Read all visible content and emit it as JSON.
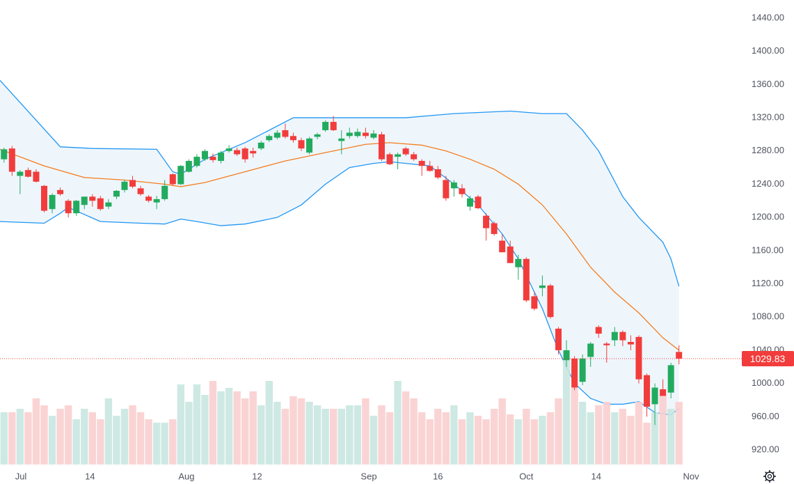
{
  "chart_data": {
    "type": "candlestick",
    "open": [
      1270,
      1283,
      1250,
      1257,
      1255,
      1238,
      1210,
      1233,
      1220,
      1205,
      1215,
      1225,
      1223,
      1213,
      1225,
      1233,
      1245,
      1235,
      1225,
      1218,
      1222,
      1252,
      1240,
      1255,
      1262,
      1270,
      1273,
      1268,
      1280,
      1281,
      1283,
      1280,
      1283,
      1293,
      1296,
      1305,
      1298,
      1293,
      1278,
      1297,
      1305,
      1315,
      1292,
      1298,
      1298,
      1302,
      1296,
      1300,
      1276,
      1273,
      1283,
      1276,
      1268,
      1262,
      1258,
      1245,
      1235,
      1235,
      1213,
      1225,
      1202,
      1193,
      1172,
      1165,
      1140,
      1150,
      1105,
      1115,
      1118,
      1066,
      1028,
      1030,
      1002,
      1032,
      1068,
      1048,
      1052,
      1062,
      1050,
      1056,
      1010,
      975,
      993,
      989,
      1038
    ],
    "high": [
      1284,
      1286,
      1257,
      1260,
      1258,
      1239,
      1229,
      1236,
      1222,
      1221,
      1225,
      1228,
      1226,
      1222,
      1233,
      1245,
      1250,
      1238,
      1227,
      1226,
      1245,
      1253,
      1263,
      1270,
      1276,
      1282,
      1277,
      1280,
      1287,
      1284,
      1285,
      1284,
      1292,
      1300,
      1305,
      1313,
      1302,
      1296,
      1297,
      1302,
      1317,
      1322,
      1305,
      1308,
      1307,
      1308,
      1305,
      1303,
      1278,
      1278,
      1285,
      1279,
      1270,
      1268,
      1262,
      1250,
      1245,
      1240,
      1226,
      1227,
      1205,
      1195,
      1180,
      1172,
      1155,
      1152,
      1110,
      1130,
      1120,
      1068,
      1052,
      1033,
      1035,
      1050,
      1070,
      1050,
      1068,
      1064,
      1058,
      1058,
      1012,
      1000,
      1005,
      1025,
      1046
    ],
    "low": [
      1266,
      1250,
      1228,
      1248,
      1242,
      1206,
      1205,
      1226,
      1200,
      1202,
      1210,
      1213,
      1208,
      1210,
      1222,
      1230,
      1235,
      1226,
      1218,
      1210,
      1220,
      1238,
      1239,
      1254,
      1260,
      1268,
      1266,
      1265,
      1278,
      1274,
      1266,
      1272,
      1281,
      1291,
      1294,
      1295,
      1290,
      1280,
      1276,
      1294,
      1303,
      1304,
      1276,
      1295,
      1296,
      1295,
      1294,
      1268,
      1263,
      1258,
      1274,
      1268,
      1250,
      1255,
      1246,
      1220,
      1225,
      1224,
      1208,
      1210,
      1172,
      1178,
      1158,
      1145,
      1125,
      1098,
      1088,
      1105,
      1078,
      1035,
      1020,
      992,
      998,
      1020,
      1055,
      1025,
      1045,
      1045,
      1040,
      1000,
      960,
      950,
      985,
      982,
      1023
    ],
    "close": [
      1282,
      1255,
      1255,
      1249,
      1243,
      1208,
      1227,
      1228,
      1205,
      1220,
      1225,
      1220,
      1210,
      1218,
      1232,
      1243,
      1237,
      1228,
      1220,
      1222,
      1238,
      1240,
      1262,
      1268,
      1273,
      1280,
      1269,
      1278,
      1283,
      1276,
      1270,
      1277,
      1290,
      1298,
      1302,
      1297,
      1293,
      1283,
      1295,
      1300,
      1315,
      1305,
      1295,
      1302,
      1303,
      1298,
      1301,
      1270,
      1264,
      1276,
      1276,
      1270,
      1262,
      1256,
      1248,
      1223,
      1242,
      1228,
      1223,
      1211,
      1187,
      1180,
      1158,
      1145,
      1150,
      1100,
      1090,
      1118,
      1080,
      1040,
      1040,
      995,
      1030,
      1048,
      1060,
      1046,
      1062,
      1052,
      1047,
      1005,
      972,
      995,
      985,
      1022,
      1029.83
    ],
    "volume": [
      75,
      75,
      80,
      75,
      95,
      85,
      70,
      80,
      85,
      65,
      80,
      75,
      65,
      95,
      70,
      80,
      85,
      75,
      65,
      60,
      60,
      65,
      115,
      90,
      115,
      100,
      120,
      105,
      110,
      105,
      95,
      105,
      85,
      120,
      90,
      80,
      98,
      95,
      90,
      85,
      80,
      80,
      80,
      85,
      85,
      95,
      70,
      85,
      75,
      120,
      105,
      95,
      75,
      65,
      80,
      75,
      85,
      65,
      75,
      70,
      65,
      80,
      95,
      72,
      65,
      80,
      65,
      70,
      75,
      95,
      150,
      110,
      90,
      75,
      85,
      90,
      75,
      80,
      70,
      90,
      60,
      75,
      100,
      80,
      90
    ],
    "up_color": "#22ab5e",
    "down_color": "#f23c3c",
    "series": [
      {
        "color": "#2196f3",
        "x": [
          -0.5,
          7,
          11,
          19,
          21,
          22,
          25,
          30,
          36,
          40,
          50,
          56,
          63,
          67,
          70,
          72,
          74,
          77,
          79,
          82,
          83,
          84
        ],
        "values": [
          1365,
          1285,
          1283,
          1282,
          1255,
          1252,
          1270,
          1290,
          1320,
          1320,
          1320,
          1325,
          1328,
          1325,
          1325,
          1305,
          1280,
          1225,
          1200,
          1170,
          1150,
          1117
        ]
      },
      {
        "color": "#f57c1f",
        "x": [
          -0.5,
          5,
          10,
          15,
          20,
          22,
          25,
          30,
          35,
          40,
          45,
          48,
          52,
          55,
          58,
          61,
          64,
          67,
          70,
          73,
          76,
          79,
          82,
          84
        ],
        "values": [
          1282,
          1262,
          1248,
          1245,
          1240,
          1237,
          1242,
          1255,
          1268,
          1278,
          1288,
          1290,
          1287,
          1280,
          1270,
          1258,
          1240,
          1215,
          1180,
          1140,
          1110,
          1085,
          1055,
          1040
        ]
      },
      {
        "color": "#2196f3",
        "x": [
          -0.5,
          5,
          7,
          8,
          12,
          17,
          20,
          22,
          24,
          27,
          30,
          34,
          37,
          40,
          43,
          46,
          48,
          50,
          53,
          56,
          59,
          62,
          64,
          67,
          69,
          71,
          73,
          75,
          77,
          79,
          81,
          83,
          84
        ],
        "values": [
          1195,
          1193,
          1205,
          1212,
          1195,
          1193,
          1192,
          1198,
          1195,
          1190,
          1192,
          1200,
          1215,
          1240,
          1260,
          1265,
          1267,
          1265,
          1262,
          1240,
          1215,
          1180,
          1150,
          1090,
          1040,
          1000,
          982,
          975,
          975,
          978,
          965,
          962,
          970
        ]
      }
    ],
    "band_fill": "#eef6fc",
    "last_price": {
      "value": 1029.83,
      "label": "1029.83"
    },
    "xlim": [
      -0.5,
      91.3
    ],
    "xticks": [
      {
        "value": 2.1,
        "label": "Jul"
      },
      {
        "value": 10.7,
        "label": "14"
      },
      {
        "value": 22.7,
        "label": "Aug"
      },
      {
        "value": 31.5,
        "label": "12"
      },
      {
        "value": 45.4,
        "label": "Sep"
      },
      {
        "value": 54,
        "label": "16"
      },
      {
        "value": 65,
        "label": "Oct"
      },
      {
        "value": 73.7,
        "label": "14"
      },
      {
        "value": 85.5,
        "label": "Nov"
      }
    ],
    "ylim": [
      902.4,
      1461.8
    ],
    "yticks": [
      {
        "value": 920,
        "label": "920.00"
      },
      {
        "value": 960,
        "label": "960.00"
      },
      {
        "value": 1000,
        "label": "1000.00"
      },
      {
        "value": 1040,
        "label": "1040.00"
      },
      {
        "value": 1080,
        "label": "1080.00"
      },
      {
        "value": 1120,
        "label": "1120.00"
      },
      {
        "value": 1160,
        "label": "1160.00"
      },
      {
        "value": 1200,
        "label": "1200.00"
      },
      {
        "value": 1240,
        "label": "1240.00"
      },
      {
        "value": 1280,
        "label": "1280.00"
      },
      {
        "value": 1320,
        "label": "1320.00"
      },
      {
        "value": 1360,
        "label": "1360.00"
      },
      {
        "value": 1400,
        "label": "1400.00"
      },
      {
        "value": 1440,
        "label": "1440.00"
      }
    ]
  }
}
